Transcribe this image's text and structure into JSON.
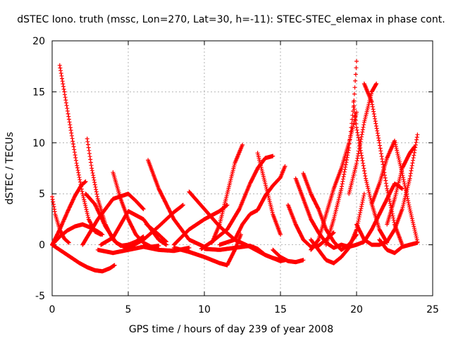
{
  "chart_data": {
    "type": "scatter",
    "title": "dSTEC Iono. truth (mssc, Lon=270, Lat=30, h=-11): STEC-STEC_elemax in phase cont.",
    "xlabel": "GPS time / hours of day 239 of year 2008",
    "ylabel": "dSTEC  / TECUs",
    "xlim": [
      0,
      25
    ],
    "ylim": [
      -5,
      20
    ],
    "xticks": [
      "0",
      "5",
      "10",
      "15",
      "20",
      "25"
    ],
    "yticks": [
      "-5",
      "0",
      "5",
      "10",
      "15",
      "20"
    ],
    "grid": true,
    "marker": "+",
    "series_color": "#ff0000",
    "series": [
      {
        "x": [
          0.5,
          0.8,
          1.2,
          1.6,
          2.0,
          2.4,
          2.8,
          3.2
        ],
        "y": [
          17.6,
          15,
          11.5,
          8,
          5,
          2.5,
          1.3,
          1.0
        ]
      },
      {
        "x": [
          0.0,
          0.2,
          0.5,
          0.8,
          1.1
        ],
        "y": [
          4.7,
          3.0,
          1.5,
          0.6,
          0.2
        ]
      },
      {
        "x": [
          0.0,
          0.4,
          0.8,
          1.3,
          1.8,
          2.3,
          2.8,
          3.3,
          3.8,
          4.1
        ],
        "y": [
          0.0,
          -0.4,
          -0.8,
          -1.3,
          -1.8,
          -2.2,
          -2.5,
          -2.6,
          -2.3,
          -2.0
        ]
      },
      {
        "x": [
          0.0,
          0.5,
          1.0,
          1.5,
          2.0,
          2.5,
          3.0,
          3.3
        ],
        "y": [
          0.0,
          0.8,
          1.4,
          1.8,
          2.0,
          1.7,
          1.3,
          1.0
        ]
      },
      {
        "x": [
          0.0,
          0.5,
          1.0,
          1.5,
          1.9,
          2.2
        ],
        "y": [
          0.0,
          1.5,
          3.2,
          4.8,
          5.8,
          6.2
        ]
      },
      {
        "x": [
          2.3,
          2.6,
          3.0,
          3.5,
          4.0,
          4.5,
          5.0,
          5.5,
          6.0
        ],
        "y": [
          10.4,
          7.5,
          4.5,
          2.0,
          0.5,
          -0.1,
          0.0,
          0.3,
          0.8
        ]
      },
      {
        "x": [
          2.0,
          3.0,
          4.0,
          5.0,
          5.5,
          6.0
        ],
        "y": [
          0.0,
          2.5,
          4.5,
          5.0,
          4.3,
          3.5
        ]
      },
      {
        "x": [
          2.2,
          2.8,
          3.5,
          4.2,
          5.0
        ],
        "y": [
          5.0,
          4.0,
          1.8,
          0.2,
          -0.4
        ]
      },
      {
        "x": [
          4.0,
          4.5,
          5.0,
          5.5,
          6.0,
          6.5,
          7.0
        ],
        "y": [
          7.1,
          4.5,
          2.5,
          1.0,
          0.2,
          -0.2,
          -0.1
        ]
      },
      {
        "x": [
          3.0,
          4.0,
          5.0,
          6.0,
          7.0,
          8.0,
          9.0
        ],
        "y": [
          -0.5,
          -0.8,
          -0.5,
          -0.2,
          -0.5,
          -0.6,
          -0.3
        ]
      },
      {
        "x": [
          3.2,
          4.0,
          5.0,
          6.0,
          7.0,
          7.5
        ],
        "y": [
          0.0,
          0.7,
          3.3,
          2.5,
          0.5,
          0.0
        ]
      },
      {
        "x": [
          6.3,
          7.0,
          8.0,
          9.0,
          10.0
        ],
        "y": [
          8.3,
          5.5,
          2.5,
          0.5,
          -0.2
        ]
      },
      {
        "x": [
          5.0,
          6.0,
          7.0,
          8.0,
          8.6
        ],
        "y": [
          -0.3,
          0.5,
          1.8,
          3.2,
          3.9
        ]
      },
      {
        "x": [
          6.2,
          7.0,
          7.5
        ],
        "y": [
          2.0,
          1.0,
          0.3
        ]
      },
      {
        "x": [
          8.0,
          9.0,
          10.0,
          11.0,
          11.5
        ],
        "y": [
          0.0,
          1.5,
          2.5,
          3.3,
          3.9
        ]
      },
      {
        "x": [
          9.0,
          10.0,
          11.0,
          12.0,
          13.0,
          14.0,
          15.0,
          15.3
        ],
        "y": [
          5.2,
          3.5,
          1.8,
          0.5,
          -0.2,
          -1.0,
          -1.6,
          -1.5
        ]
      },
      {
        "x": [
          8.0,
          9.0,
          10.0,
          11.0,
          11.5,
          12.0,
          12.4
        ],
        "y": [
          -0.3,
          -0.7,
          -1.2,
          -1.8,
          -2.0,
          -0.5,
          1.0
        ]
      },
      {
        "x": [
          10.5,
          11.0,
          11.5,
          12.0,
          12.5
        ],
        "y": [
          0.2,
          2.0,
          5.0,
          8.0,
          9.8
        ]
      },
      {
        "x": [
          9.8,
          10.5,
          11.5,
          12.3,
          13.0,
          13.5,
          14.0,
          14.5
        ],
        "y": [
          -0.4,
          0.3,
          1.5,
          3.5,
          6.0,
          7.5,
          8.5,
          8.7
        ]
      },
      {
        "x": [
          11.0,
          12.0,
          12.5,
          13.0,
          13.5,
          14.0,
          14.5,
          15.0,
          15.3
        ],
        "y": [
          0.0,
          0.5,
          2.0,
          3.0,
          3.4,
          4.8,
          5.8,
          6.6,
          7.7
        ]
      },
      {
        "x": [
          10.0,
          11.0,
          12.0,
          13.0,
          13.5,
          14.0,
          14.5,
          15.0
        ],
        "y": [
          -0.4,
          -0.5,
          -0.3,
          -0.1,
          -0.4,
          -1.0,
          -1.3,
          -1.5
        ]
      },
      {
        "x": [
          13.5,
          14.0,
          14.5,
          15.0
        ],
        "y": [
          9.0,
          6.0,
          3.0,
          1.0
        ]
      },
      {
        "x": [
          15.5,
          16.0,
          16.5,
          17.0,
          17.5,
          18.0,
          18.5
        ],
        "y": [
          3.9,
          2.0,
          0.5,
          -0.2,
          -0.1,
          0.5,
          1.2
        ]
      },
      {
        "x": [
          16.0,
          16.5,
          17.0,
          17.5,
          18.0,
          18.5,
          19.0
        ],
        "y": [
          6.5,
          4.5,
          2.5,
          1.2,
          0.2,
          -0.3,
          0.0
        ]
      },
      {
        "x": [
          16.5,
          17.0,
          17.5,
          18.0,
          18.5,
          19.0,
          19.5,
          20.0
        ],
        "y": [
          7.0,
          5.0,
          3.5,
          1.5,
          0.3,
          -0.5,
          0.0,
          1.0
        ]
      },
      {
        "x": [
          17.0,
          17.5,
          18.0,
          18.5,
          19.0,
          19.5,
          20.0
        ],
        "y": [
          -0.5,
          0.5,
          3.0,
          5.5,
          7.5,
          10.0,
          13.0
        ]
      },
      {
        "x": [
          18.0,
          18.5,
          19.0,
          19.5,
          19.8,
          20.0
        ],
        "y": [
          0.0,
          2.5,
          5.5,
          9.5,
          13.5,
          18.0
        ]
      },
      {
        "x": [
          19.8,
          20.0,
          20.3,
          20.6,
          21.0,
          21.5,
          22.0
        ],
        "y": [
          14.0,
          11.5,
          9.0,
          6.5,
          4.0,
          1.5,
          0.2
        ]
      },
      {
        "x": [
          17.0,
          17.5,
          18.0,
          18.5,
          19.0,
          19.5,
          20.0,
          20.5
        ],
        "y": [
          0.5,
          -0.5,
          -1.5,
          -1.8,
          -1.2,
          -0.3,
          1.5,
          5.0
        ]
      },
      {
        "x": [
          19.5,
          20.0,
          20.5,
          21.0,
          21.3
        ],
        "y": [
          5.0,
          8.0,
          12.0,
          15.0,
          15.8
        ]
      },
      {
        "x": [
          20.5,
          21.0,
          21.5,
          22.0,
          22.5,
          23.0
        ],
        "y": [
          15.8,
          14.0,
          10.0,
          5.5,
          2.0,
          0.0
        ]
      },
      {
        "x": [
          20.0,
          20.5,
          21.0,
          21.5,
          22.0,
          22.5,
          23.0,
          23.5,
          24.0
        ],
        "y": [
          2.0,
          0.5,
          0.0,
          0.0,
          0.3,
          1.5,
          3.5,
          6.5,
          10.8
        ]
      },
      {
        "x": [
          21.0,
          21.5,
          22.0,
          22.5,
          23.0,
          23.5,
          24.0
        ],
        "y": [
          4.0,
          6.0,
          8.5,
          10.2,
          7.0,
          3.5,
          0.3
        ]
      },
      {
        "x": [
          21.5,
          22.0,
          22.5,
          23.0,
          23.5,
          24.0
        ],
        "y": [
          0.5,
          -0.5,
          -0.8,
          -0.2,
          0.0,
          0.2
        ]
      },
      {
        "x": [
          22.0,
          22.5,
          23.0,
          23.5,
          23.8
        ],
        "y": [
          2.0,
          4.5,
          7.5,
          9.0,
          9.6
        ]
      },
      {
        "x": [
          19.0,
          19.5,
          20.0,
          20.5,
          21.0,
          21.5,
          22.0,
          22.5,
          23.0
        ],
        "y": [
          0.0,
          -0.2,
          0.0,
          0.3,
          1.5,
          3.0,
          4.5,
          6.0,
          5.5
        ]
      },
      {
        "x": [
          14.5,
          15.0,
          15.5,
          16.0,
          16.5
        ],
        "y": [
          -0.5,
          -1.2,
          -1.6,
          -1.7,
          -1.5
        ]
      }
    ]
  }
}
